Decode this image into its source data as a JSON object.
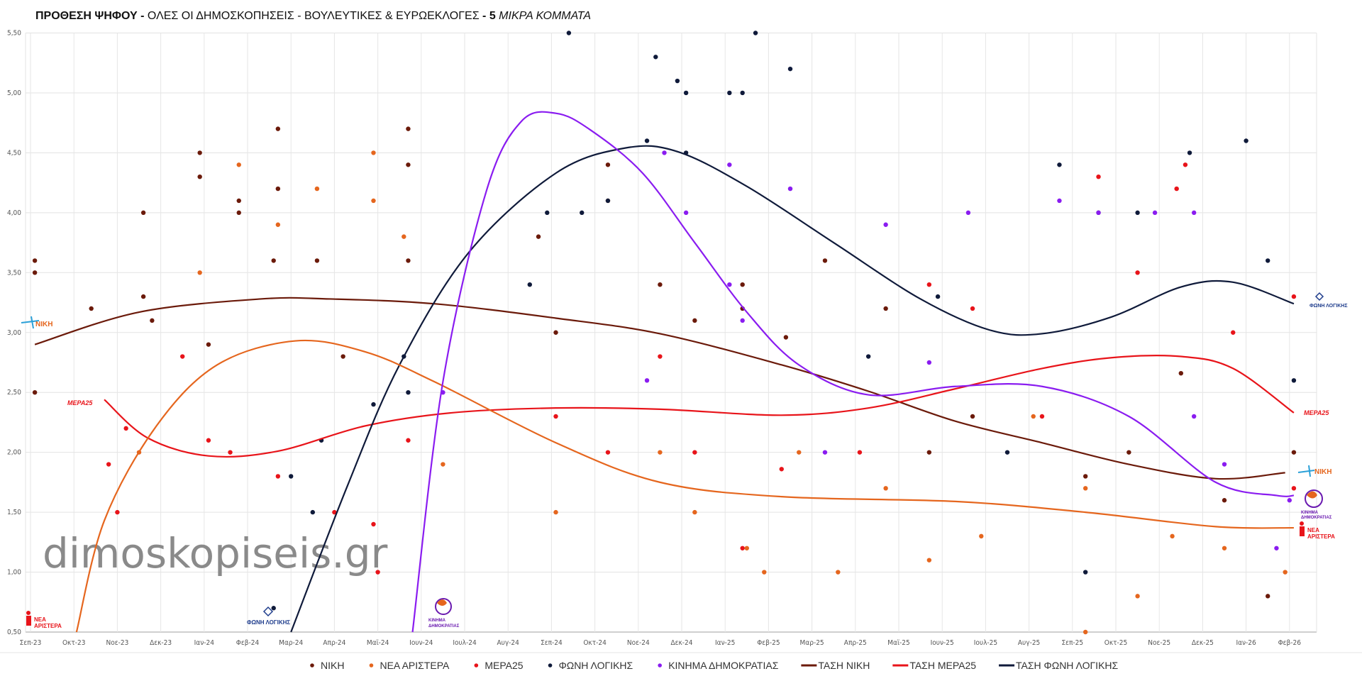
{
  "chart_data": {
    "type": "scatter",
    "title": {
      "bold_part": "ΠΡΟΘΕΣΗ ΨΗΦΟΥ -",
      "normal_part": " ΟΛΕΣ ΟΙ ΔΗΜΟΣΚΟΠΗΣΕΙΣ - ΒΟΥΛΕΥΤΙΚΕΣ & ΕΥΡΩΕΚΛΟΓΕΣ ",
      "bold_part2": "- 5 ",
      "italic_part": "ΜΙΚΡΑ ΚΟΜΜΑΤΑ"
    },
    "watermark": "dimoskopiseis.gr",
    "xlabel": "",
    "ylabel": "",
    "ylim": [
      0.5,
      5.5
    ],
    "y_ticks": [
      "0,50",
      "1,00",
      "1,50",
      "2,00",
      "2,50",
      "3,00",
      "3,50",
      "4,00",
      "4,50",
      "5,00",
      "5,50"
    ],
    "x_ticks": [
      "Σεπ-23",
      "Οκτ-23",
      "Νοε-23",
      "Δεκ-23",
      "Ιαν-24",
      "Φεβ-24",
      "Μαρ-24",
      "Απρ-24",
      "Μαϊ-24",
      "Ιουν-24",
      "Ιουλ-24",
      "Αυγ-24",
      "Σεπ-24",
      "Οκτ-24",
      "Νοε-24",
      "Δεκ-24",
      "Ιαν-25",
      "Φεβ-25",
      "Μαρ-25",
      "Απρ-25",
      "Μαϊ-25",
      "Ιουν-25",
      "Ιουλ-25",
      "Αυγ-25",
      "Σεπ-25",
      "Οκτ-25",
      "Νοε-25",
      "Δεκ-25",
      "Ιαν-26",
      "Φεβ-26"
    ],
    "x_unit": "months since Sep-23",
    "grid": true,
    "legend_position": "bottom",
    "series": [
      {
        "name": "ΝΙΚΗ",
        "kind": "scatter",
        "color": "#6b1a0a",
        "points": [
          [
            0.1,
            3.6
          ],
          [
            0.1,
            3.5
          ],
          [
            0.1,
            2.5
          ],
          [
            1.4,
            3.2
          ],
          [
            2.6,
            4.0
          ],
          [
            2.6,
            3.3
          ],
          [
            2.8,
            3.1
          ],
          [
            3.9,
            4.5
          ],
          [
            3.9,
            4.3
          ],
          [
            4.1,
            2.9
          ],
          [
            4.8,
            4.0
          ],
          [
            4.8,
            4.1
          ],
          [
            5.6,
            3.6
          ],
          [
            5.7,
            4.7
          ],
          [
            5.7,
            4.2
          ],
          [
            6.6,
            3.6
          ],
          [
            7.2,
            2.8
          ],
          [
            8.7,
            4.7
          ],
          [
            8.7,
            4.4
          ],
          [
            8.7,
            3.6
          ],
          [
            11.7,
            3.8
          ],
          [
            12.1,
            3.0
          ],
          [
            13.3,
            4.4
          ],
          [
            14.5,
            3.4
          ],
          [
            15.3,
            3.1
          ],
          [
            16.4,
            3.4
          ],
          [
            16.4,
            3.2
          ],
          [
            17.4,
            2.96
          ],
          [
            18.3,
            3.6
          ],
          [
            19.7,
            3.2
          ],
          [
            20.7,
            2.0
          ],
          [
            21.7,
            2.3
          ],
          [
            24.3,
            1.8
          ],
          [
            25.3,
            2.0
          ],
          [
            26.5,
            2.66
          ],
          [
            27.5,
            1.6
          ],
          [
            28.5,
            0.8
          ],
          [
            29.1,
            2.0
          ]
        ]
      },
      {
        "name": "ΝΕΑ ΑΡΙΣΤΕΡΑ",
        "kind": "scatter",
        "color": "#e5661e",
        "points": [
          [
            2.5,
            2.0
          ],
          [
            3.9,
            3.5
          ],
          [
            4.8,
            4.4
          ],
          [
            5.7,
            3.9
          ],
          [
            6.6,
            4.2
          ],
          [
            7.9,
            4.5
          ],
          [
            7.9,
            4.1
          ],
          [
            8.6,
            3.8
          ],
          [
            9.5,
            1.9
          ],
          [
            12.1,
            1.5
          ],
          [
            13.3,
            4.1
          ],
          [
            14.5,
            2.0
          ],
          [
            15.3,
            1.5
          ],
          [
            16.5,
            1.2
          ],
          [
            16.9,
            1.0
          ],
          [
            17.7,
            2.0
          ],
          [
            18.6,
            1.0
          ],
          [
            19.7,
            1.7
          ],
          [
            20.7,
            1.1
          ],
          [
            21.9,
            1.3
          ],
          [
            23.1,
            2.3
          ],
          [
            24.3,
            1.7
          ],
          [
            24.3,
            0.5
          ],
          [
            25.5,
            0.8
          ],
          [
            26.3,
            1.3
          ],
          [
            27.5,
            1.2
          ],
          [
            28.9,
            1.0
          ]
        ]
      },
      {
        "name": "ΜΕΡΑ25",
        "kind": "scatter",
        "color": "#e8141a",
        "points": [
          [
            1.8,
            1.9
          ],
          [
            2.0,
            1.5
          ],
          [
            2.2,
            2.2
          ],
          [
            3.5,
            2.8
          ],
          [
            4.1,
            2.1
          ],
          [
            4.6,
            2.0
          ],
          [
            5.7,
            1.8
          ],
          [
            7.0,
            1.5
          ],
          [
            7.9,
            1.4
          ],
          [
            8.0,
            1.0
          ],
          [
            8.7,
            2.1
          ],
          [
            12.1,
            2.3
          ],
          [
            13.3,
            2.0
          ],
          [
            14.5,
            2.8
          ],
          [
            15.3,
            2.0
          ],
          [
            16.4,
            1.2
          ],
          [
            17.3,
            1.86
          ],
          [
            19.1,
            2.0
          ],
          [
            20.7,
            3.4
          ],
          [
            21.7,
            3.2
          ],
          [
            23.3,
            2.3
          ],
          [
            24.6,
            4.3
          ],
          [
            25.5,
            3.5
          ],
          [
            26.4,
            4.2
          ],
          [
            26.6,
            4.4
          ],
          [
            27.7,
            3.0
          ],
          [
            29.1,
            3.3
          ],
          [
            29.1,
            1.7
          ]
        ]
      },
      {
        "name": "ΦΩΝΗ ΛΟΓΙΚΗΣ",
        "kind": "scatter",
        "color": "#0f1a3a",
        "points": [
          [
            5.6,
            0.7
          ],
          [
            6.0,
            1.8
          ],
          [
            6.5,
            1.5
          ],
          [
            6.7,
            2.1
          ],
          [
            7.9,
            2.4
          ],
          [
            8.6,
            2.8
          ],
          [
            8.7,
            2.5
          ],
          [
            11.5,
            3.4
          ],
          [
            11.9,
            4.0
          ],
          [
            12.4,
            5.5
          ],
          [
            12.7,
            4.0
          ],
          [
            13.3,
            4.1
          ],
          [
            14.2,
            4.6
          ],
          [
            14.4,
            5.3
          ],
          [
            14.9,
            5.1
          ],
          [
            15.1,
            5.0
          ],
          [
            15.1,
            4.5
          ],
          [
            16.1,
            5.0
          ],
          [
            16.4,
            5.0
          ],
          [
            16.7,
            5.5
          ],
          [
            17.5,
            5.2
          ],
          [
            19.3,
            2.8
          ],
          [
            20.9,
            3.3
          ],
          [
            22.5,
            2.0
          ],
          [
            23.7,
            4.4
          ],
          [
            24.3,
            1.0
          ],
          [
            24.6,
            4.0
          ],
          [
            25.5,
            4.0
          ],
          [
            26.7,
            4.5
          ],
          [
            28.0,
            4.6
          ],
          [
            28.5,
            3.6
          ],
          [
            29.1,
            2.6
          ]
        ]
      },
      {
        "name": "ΚΙΝΗΜΑ ΔΗΜΟΚΡΑΤΙΑΣ",
        "kind": "scatter",
        "color": "#8a1cf0",
        "points": [
          [
            9.5,
            2.5
          ],
          [
            14.2,
            2.6
          ],
          [
            14.6,
            4.5
          ],
          [
            15.1,
            4.0
          ],
          [
            16.1,
            4.4
          ],
          [
            16.1,
            3.4
          ],
          [
            16.4,
            3.1
          ],
          [
            17.5,
            4.2
          ],
          [
            18.3,
            2.0
          ],
          [
            19.7,
            3.9
          ],
          [
            20.7,
            2.75
          ],
          [
            21.6,
            4.0
          ],
          [
            23.7,
            4.1
          ],
          [
            24.6,
            4.0
          ],
          [
            25.9,
            4.0
          ],
          [
            26.8,
            4.0
          ],
          [
            26.8,
            2.3
          ],
          [
            27.5,
            1.9
          ],
          [
            28.7,
            1.2
          ],
          [
            29.0,
            1.6
          ]
        ]
      },
      {
        "name": "ΤΑΣΗ ΝΙΚΗ",
        "kind": "line",
        "color": "#6b1a0a",
        "points": [
          [
            0.1,
            2.9
          ],
          [
            2.5,
            3.17
          ],
          [
            5.3,
            3.28
          ],
          [
            6.9,
            3.28
          ],
          [
            9.3,
            3.24
          ],
          [
            12.1,
            3.12
          ],
          [
            14.5,
            2.99
          ],
          [
            17.3,
            2.73
          ],
          [
            19.3,
            2.51
          ],
          [
            21.3,
            2.26
          ],
          [
            23.3,
            2.08
          ],
          [
            25.3,
            1.9
          ],
          [
            27.3,
            1.78
          ],
          [
            28.9,
            1.83
          ]
        ]
      },
      {
        "name": "ΤΑΣΗ ΜΕΡΑ25",
        "kind": "line",
        "color": "#e8141a",
        "points": [
          [
            1.7,
            2.44
          ],
          [
            2.7,
            2.12
          ],
          [
            4.1,
            1.97
          ],
          [
            5.7,
            2.01
          ],
          [
            7.7,
            2.22
          ],
          [
            9.7,
            2.33
          ],
          [
            12.1,
            2.37
          ],
          [
            14.5,
            2.36
          ],
          [
            17.3,
            2.31
          ],
          [
            19.3,
            2.37
          ],
          [
            21.3,
            2.53
          ],
          [
            23.3,
            2.7
          ],
          [
            24.9,
            2.79
          ],
          [
            26.5,
            2.8
          ],
          [
            27.7,
            2.7
          ],
          [
            29.1,
            2.33
          ]
        ]
      },
      {
        "name": "ΤΑΣΗ ΦΩΝΗ ΛΟΓΙΚΗΣ",
        "kind": "line",
        "color": "#0f1a3a",
        "points": [
          [
            6.0,
            0.5
          ],
          [
            7.3,
            1.72
          ],
          [
            8.5,
            2.73
          ],
          [
            10.1,
            3.67
          ],
          [
            12.1,
            4.33
          ],
          [
            13.7,
            4.54
          ],
          [
            14.9,
            4.51
          ],
          [
            16.5,
            4.22
          ],
          [
            18.5,
            3.75
          ],
          [
            20.5,
            3.28
          ],
          [
            22.1,
            3.02
          ],
          [
            23.3,
            2.99
          ],
          [
            24.9,
            3.13
          ],
          [
            26.5,
            3.38
          ],
          [
            27.7,
            3.42
          ],
          [
            29.1,
            3.24
          ]
        ]
      },
      {
        "name": "ΤΑΣΗ ΝΕΑ ΑΡΙΣΤΕΡΑ",
        "kind": "line",
        "in_legend": false,
        "color": "#e5661e",
        "points": [
          [
            1.06,
            0.5
          ],
          [
            1.7,
            1.43
          ],
          [
            2.9,
            2.22
          ],
          [
            4.3,
            2.73
          ],
          [
            6.1,
            2.93
          ],
          [
            7.7,
            2.84
          ],
          [
            9.3,
            2.59
          ],
          [
            12.1,
            2.08
          ],
          [
            14.5,
            1.75
          ],
          [
            17.3,
            1.63
          ],
          [
            21.3,
            1.59
          ],
          [
            24.3,
            1.5
          ],
          [
            27.3,
            1.38
          ],
          [
            29.1,
            1.37
          ]
        ]
      },
      {
        "name": "ΤΑΣΗ ΚΙΝΗΜΑ ΔΗΜΟΚΡΑΤΙΑΣ",
        "kind": "line",
        "in_legend": false,
        "color": "#8a1cf0",
        "points": [
          [
            8.8,
            0.5
          ],
          [
            9.5,
            2.59
          ],
          [
            10.5,
            4.18
          ],
          [
            11.3,
            4.76
          ],
          [
            12.1,
            4.83
          ],
          [
            12.9,
            4.69
          ],
          [
            14.1,
            4.33
          ],
          [
            15.3,
            3.75
          ],
          [
            16.5,
            3.17
          ],
          [
            17.7,
            2.73
          ],
          [
            19.3,
            2.48
          ],
          [
            21.3,
            2.55
          ],
          [
            23.3,
            2.55
          ],
          [
            25.3,
            2.3
          ],
          [
            27.3,
            1.75
          ],
          [
            28.7,
            1.64
          ],
          [
            29.1,
            1.64
          ]
        ]
      }
    ],
    "legend": [
      {
        "label": "ΝΙΚΗ",
        "marker": "dot",
        "color": "#6b1a0a"
      },
      {
        "label": "ΝΕΑ ΑΡΙΣΤΕΡΑ",
        "marker": "dot",
        "color": "#e5661e"
      },
      {
        "label": "ΜΕΡΑ25",
        "marker": "dot",
        "color": "#e8141a"
      },
      {
        "label": "ΦΩΝΗ ΛΟΓΙΚΗΣ",
        "marker": "dot",
        "color": "#0f1a3a"
      },
      {
        "label": "ΚΙΝΗΜΑ ΔΗΜΟΚΡΑΤΙΑΣ",
        "marker": "dot",
        "color": "#8a1cf0"
      },
      {
        "label": "ΤΑΣΗ ΝΙΚΗ",
        "marker": "line",
        "color": "#6b1a0a"
      },
      {
        "label": "ΤΑΣΗ ΜΕΡΑ25",
        "marker": "line",
        "color": "#e8141a"
      },
      {
        "label": "ΤΑΣΗ ΦΩΝΗ ΛΟΓΙΚΗΣ",
        "marker": "line",
        "color": "#0f1a3a"
      }
    ],
    "logos": {
      "niki": "ΝΙΚΗ",
      "mera25": "ΜΕΡΑ25",
      "nea_aristera_1": "ΝΕΑ",
      "nea_aristera_2": "ΑΡΙΣΤΕΡΑ",
      "foni_logikis": "ΦΩΝΗ ΛΟΓΙΚΗΣ",
      "kinima_1": "ΚΙΝΗΜΑ",
      "kinima_2": "ΔΗΜΟΚΡΑΤΙΑΣ"
    }
  }
}
